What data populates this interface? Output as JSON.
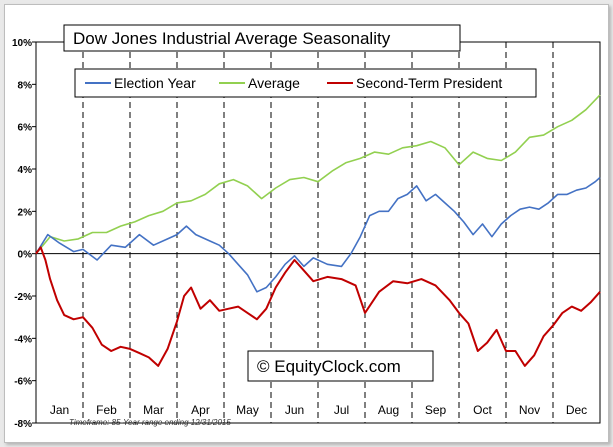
{
  "chart_data": {
    "type": "line",
    "title": "Dow Jones Industrial Average Seasonality",
    "xlabel": "",
    "ylabel": "",
    "categories": [
      "Jan",
      "Feb",
      "Mar",
      "Apr",
      "May",
      "Jun",
      "Jul",
      "Aug",
      "Sep",
      "Oct",
      "Nov",
      "Dec"
    ],
    "x_unit": "month (0 = start of Jan, 12 = end of Dec)",
    "ylim": [
      -8,
      10
    ],
    "y_ticks": [
      -8,
      -6,
      -4,
      -2,
      0,
      2,
      4,
      6,
      8,
      10
    ],
    "y_tick_labels": [
      "-8%",
      "-6%",
      "-4%",
      "-2%",
      "0%",
      "2%",
      "4%",
      "6%",
      "8%",
      "10%"
    ],
    "grid": {
      "vertical_month_separators": true,
      "style": "dashed"
    },
    "legend_position": "top",
    "series": [
      {
        "name": "Election Year",
        "color": "#4472c4",
        "points": [
          [
            0,
            0
          ],
          [
            0.25,
            0.9
          ],
          [
            0.5,
            0.5
          ],
          [
            0.8,
            0.1
          ],
          [
            1.0,
            0.2
          ],
          [
            1.3,
            -0.3
          ],
          [
            1.6,
            0.4
          ],
          [
            1.9,
            0.3
          ],
          [
            2.2,
            0.9
          ],
          [
            2.5,
            0.4
          ],
          [
            2.8,
            0.7
          ],
          [
            3.0,
            0.9
          ],
          [
            3.2,
            1.3
          ],
          [
            3.4,
            0.9
          ],
          [
            3.7,
            0.6
          ],
          [
            3.9,
            0.4
          ],
          [
            4.1,
            0
          ],
          [
            4.3,
            -0.5
          ],
          [
            4.5,
            -1
          ],
          [
            4.7,
            -1.8
          ],
          [
            4.9,
            -1.6
          ],
          [
            5.1,
            -1.1
          ],
          [
            5.3,
            -0.5
          ],
          [
            5.5,
            -0.1
          ],
          [
            5.7,
            -0.6
          ],
          [
            5.9,
            -0.2
          ],
          [
            6.2,
            -0.5
          ],
          [
            6.5,
            -0.6
          ],
          [
            6.7,
            0
          ],
          [
            6.9,
            0.8
          ],
          [
            7.1,
            1.8
          ],
          [
            7.3,
            2
          ],
          [
            7.5,
            2
          ],
          [
            7.7,
            2.6
          ],
          [
            7.9,
            2.8
          ],
          [
            8.1,
            3.2
          ],
          [
            8.3,
            2.5
          ],
          [
            8.5,
            2.8
          ],
          [
            8.7,
            2.4
          ],
          [
            8.9,
            2
          ],
          [
            9.1,
            1.5
          ],
          [
            9.3,
            0.9
          ],
          [
            9.5,
            1.4
          ],
          [
            9.7,
            0.8
          ],
          [
            9.9,
            1.4
          ],
          [
            10.1,
            1.8
          ],
          [
            10.3,
            2.1
          ],
          [
            10.5,
            2.2
          ],
          [
            10.7,
            2.1
          ],
          [
            10.9,
            2.4
          ],
          [
            11.1,
            2.8
          ],
          [
            11.3,
            2.8
          ],
          [
            11.5,
            3
          ],
          [
            11.7,
            3.1
          ],
          [
            11.9,
            3.4
          ],
          [
            12.0,
            3.6
          ]
        ]
      },
      {
        "name": "Average",
        "color": "#92d050",
        "points": [
          [
            0,
            0
          ],
          [
            0.3,
            0.8
          ],
          [
            0.6,
            0.6
          ],
          [
            0.9,
            0.7
          ],
          [
            1.2,
            1
          ],
          [
            1.5,
            1
          ],
          [
            1.8,
            1.3
          ],
          [
            2.1,
            1.5
          ],
          [
            2.4,
            1.8
          ],
          [
            2.7,
            2
          ],
          [
            3.0,
            2.4
          ],
          [
            3.3,
            2.5
          ],
          [
            3.6,
            2.8
          ],
          [
            3.9,
            3.3
          ],
          [
            4.2,
            3.5
          ],
          [
            4.5,
            3.2
          ],
          [
            4.8,
            2.6
          ],
          [
            5.1,
            3.1
          ],
          [
            5.4,
            3.5
          ],
          [
            5.7,
            3.6
          ],
          [
            6.0,
            3.4
          ],
          [
            6.3,
            3.9
          ],
          [
            6.6,
            4.3
          ],
          [
            6.9,
            4.5
          ],
          [
            7.2,
            4.8
          ],
          [
            7.5,
            4.7
          ],
          [
            7.8,
            5
          ],
          [
            8.1,
            5.1
          ],
          [
            8.4,
            5.3
          ],
          [
            8.7,
            5
          ],
          [
            9.0,
            4.2
          ],
          [
            9.3,
            4.8
          ],
          [
            9.6,
            4.5
          ],
          [
            9.9,
            4.4
          ],
          [
            10.2,
            4.8
          ],
          [
            10.5,
            5.5
          ],
          [
            10.8,
            5.6
          ],
          [
            11.1,
            6
          ],
          [
            11.4,
            6.3
          ],
          [
            11.7,
            6.8
          ],
          [
            12.0,
            7.5
          ]
        ]
      },
      {
        "name": "Second-Term President",
        "color": "#c00000",
        "points": [
          [
            0,
            0
          ],
          [
            0.1,
            0.3
          ],
          [
            0.2,
            -0.3
          ],
          [
            0.3,
            -1.2
          ],
          [
            0.45,
            -2.2
          ],
          [
            0.6,
            -2.9
          ],
          [
            0.8,
            -3.1
          ],
          [
            1.0,
            -3
          ],
          [
            1.2,
            -3.5
          ],
          [
            1.4,
            -4.3
          ],
          [
            1.6,
            -4.6
          ],
          [
            1.8,
            -4.4
          ],
          [
            2.0,
            -4.5
          ],
          [
            2.2,
            -4.7
          ],
          [
            2.4,
            -4.9
          ],
          [
            2.6,
            -5.3
          ],
          [
            2.8,
            -4.5
          ],
          [
            3.0,
            -3.2
          ],
          [
            3.15,
            -2
          ],
          [
            3.3,
            -1.6
          ],
          [
            3.5,
            -2.6
          ],
          [
            3.7,
            -2.2
          ],
          [
            3.9,
            -2.7
          ],
          [
            4.1,
            -2.6
          ],
          [
            4.3,
            -2.5
          ],
          [
            4.5,
            -2.8
          ],
          [
            4.7,
            -3.1
          ],
          [
            4.9,
            -2.6
          ],
          [
            5.1,
            -1.6
          ],
          [
            5.3,
            -0.9
          ],
          [
            5.5,
            -0.3
          ],
          [
            5.7,
            -0.8
          ],
          [
            5.9,
            -1.3
          ],
          [
            6.2,
            -1.1
          ],
          [
            6.5,
            -1.2
          ],
          [
            6.8,
            -1.5
          ],
          [
            7.0,
            -2.8
          ],
          [
            7.3,
            -1.8
          ],
          [
            7.6,
            -1.3
          ],
          [
            7.9,
            -1.4
          ],
          [
            8.2,
            -1.2
          ],
          [
            8.5,
            -1.5
          ],
          [
            8.8,
            -2.2
          ],
          [
            9.0,
            -2.8
          ],
          [
            9.2,
            -3.3
          ],
          [
            9.4,
            -4.6
          ],
          [
            9.6,
            -4.2
          ],
          [
            9.8,
            -3.6
          ],
          [
            10.0,
            -4.6
          ],
          [
            10.2,
            -4.6
          ],
          [
            10.4,
            -5.3
          ],
          [
            10.6,
            -4.8
          ],
          [
            10.8,
            -3.9
          ],
          [
            11.0,
            -3.4
          ],
          [
            11.2,
            -2.8
          ],
          [
            11.4,
            -2.5
          ],
          [
            11.6,
            -2.7
          ],
          [
            11.8,
            -2.3
          ],
          [
            12.0,
            -1.8
          ]
        ]
      }
    ]
  },
  "watermark": "© EquityClock.com",
  "footnote": "Timeframe: 85-Year range ending 12/31/2015"
}
